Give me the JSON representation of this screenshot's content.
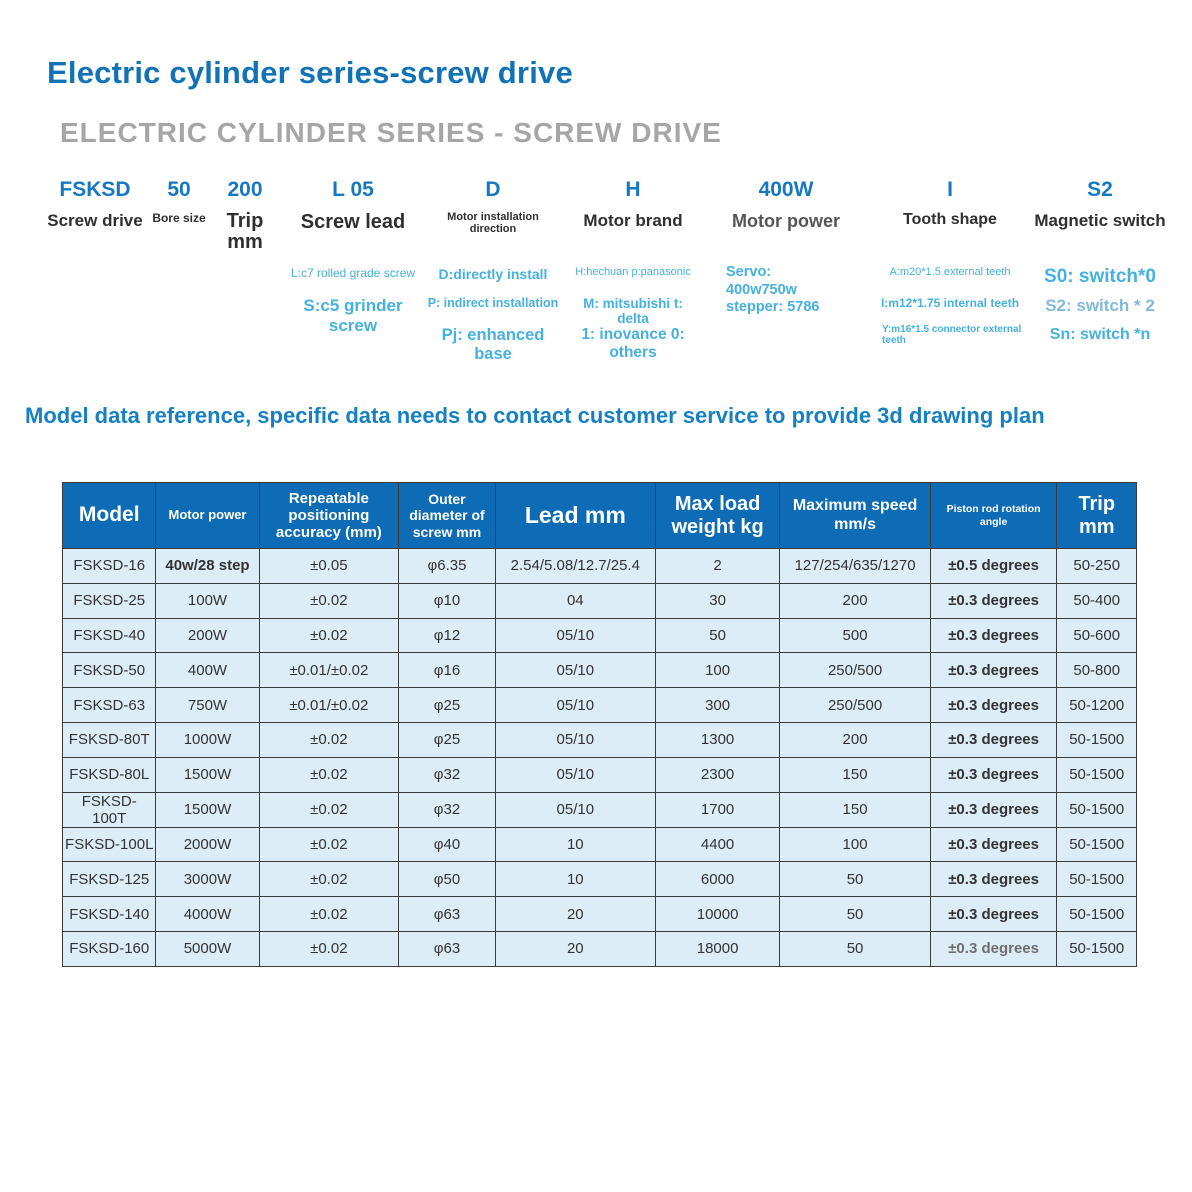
{
  "page": {
    "title": "Electric cylinder series-screw drive",
    "subtitle": "ELECTRIC CYLINDER SERIES - SCREW DRIVE",
    "reference_note": "Model data reference, specific data needs to contact customer service to provide 3d drawing plan"
  },
  "colors": {
    "title_blue": "#1173b6",
    "subtitle_gray": "#a6a6a6",
    "code_blue": "#1778c2",
    "notes_light_blue": "#45b1de",
    "reference_note_blue": "#1680c2",
    "table_header_bg": "#0d6cb5",
    "table_header_text": "#ffffff",
    "table_row_bg": "#dcedf8",
    "table_border": "#3c3c3c"
  },
  "code_breakdown": [
    {
      "code": "FSKSD",
      "label": "Screw drive",
      "notes": []
    },
    {
      "code": "50",
      "label": "Bore size",
      "notes": []
    },
    {
      "code": "200",
      "label": "Trip mm",
      "notes": []
    },
    {
      "code": "L 05",
      "label": "Screw lead",
      "notes": [
        "L:c7 rolled grade screw",
        "S:c5 grinder screw"
      ]
    },
    {
      "code": "D",
      "label": "Motor installation direction",
      "notes": [
        "D:directly install",
        "P: indirect installation",
        "Pj: enhanced base"
      ]
    },
    {
      "code": "H",
      "label": "Motor brand",
      "notes": [
        "H:hechuan p:panasonic",
        "M: mitsubishi t: delta",
        "1: inovance 0: others"
      ]
    },
    {
      "code": "400W",
      "label": "Motor power",
      "notes": [
        "Servo:",
        "400w750w",
        "stepper: 5786"
      ]
    },
    {
      "code": "I",
      "label": "Tooth shape",
      "notes": [
        "A:m20*1.5 external teeth",
        "I:m12*1.75 internal teeth",
        "Y:m16*1.5 connector external teeth"
      ]
    },
    {
      "code": "S2",
      "label": "Magnetic switch",
      "notes": [
        "S0: switch*0",
        "S2: switch * 2",
        "Sn: switch *n"
      ]
    }
  ],
  "table": {
    "headers": [
      "Model",
      "Motor power",
      "Repeatable positioning accuracy (mm)",
      "Outer diameter of screw mm",
      "Lead mm",
      "Max load weight kg",
      "Maximum speed mm/s",
      "Piston rod rotation angle",
      "Trip mm"
    ],
    "col_widths_pct": [
      8.7,
      9.6,
      13.0,
      9.0,
      14.9,
      11.6,
      14.0,
      11.8,
      7.4
    ],
    "rows": [
      [
        "FSKSD-16",
        "40w/28 step",
        "±0.05",
        "φ6.35",
        "2.54/5.08/12.7/25.4",
        "2",
        "127/254/635/1270",
        "±0.5 degrees",
        "50-250"
      ],
      [
        "FSKSD-25",
        "100W",
        "±0.02",
        "φ10",
        "04",
        "30",
        "200",
        "±0.3 degrees",
        "50-400"
      ],
      [
        "FSKSD-40",
        "200W",
        "±0.02",
        "φ12",
        "05/10",
        "50",
        "500",
        "±0.3 degrees",
        "50-600"
      ],
      [
        "FSKSD-50",
        "400W",
        "±0.01/±0.02",
        "φ16",
        "05/10",
        "100",
        "250/500",
        "±0.3 degrees",
        "50-800"
      ],
      [
        "FSKSD-63",
        "750W",
        "±0.01/±0.02",
        "φ25",
        "05/10",
        "300",
        "250/500",
        "±0.3 degrees",
        "50-1200"
      ],
      [
        "FSKSD-80T",
        "1000W",
        "±0.02",
        "φ25",
        "05/10",
        "1300",
        "200",
        "±0.3 degrees",
        "50-1500"
      ],
      [
        "FSKSD-80L",
        "1500W",
        "±0.02",
        "φ32",
        "05/10",
        "2300",
        "150",
        "±0.3 degrees",
        "50-1500"
      ],
      [
        "FSKSD-100T",
        "1500W",
        "±0.02",
        "φ32",
        "05/10",
        "1700",
        "150",
        "±0.3 degrees",
        "50-1500"
      ],
      [
        "FSKSD-100L",
        "2000W",
        "±0.02",
        "φ40",
        "10",
        "4400",
        "100",
        "±0.3 degrees",
        "50-1500"
      ],
      [
        "FSKSD-125",
        "3000W",
        "±0.02",
        "φ50",
        "10",
        "6000",
        "50",
        "±0.3 degrees",
        "50-1500"
      ],
      [
        "FSKSD-140",
        "4000W",
        "±0.02",
        "φ63",
        "20",
        "10000",
        "50",
        "±0.3 degrees",
        "50-1500"
      ],
      [
        "FSKSD-160",
        "5000W",
        "±0.02",
        "φ63",
        "20",
        "18000",
        "50",
        "±0.3 degrees",
        "50-1500"
      ]
    ]
  }
}
